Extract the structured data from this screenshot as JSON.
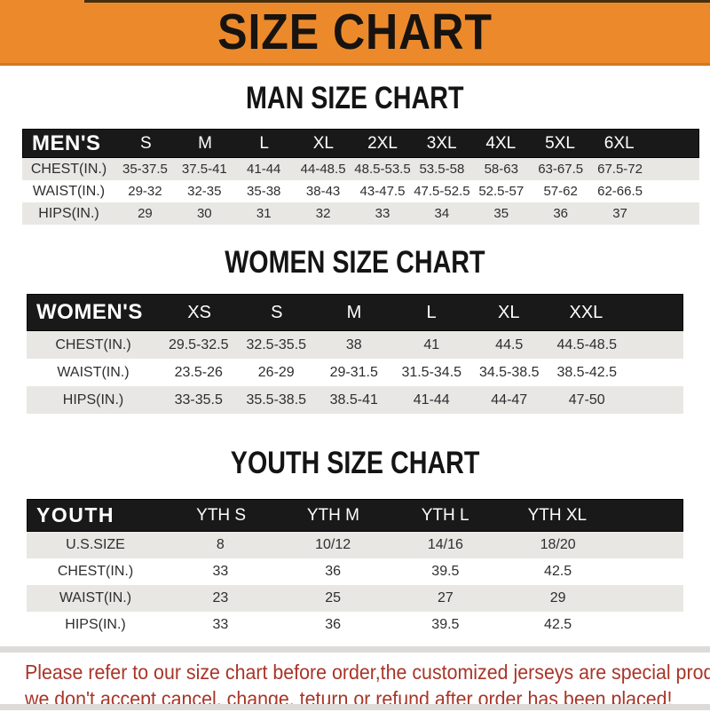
{
  "banner": {
    "title": "SIZE CHART",
    "bg_color": "#EC8A2B"
  },
  "sections": [
    {
      "heading": "MAN SIZE CHART",
      "label": "MEN'S",
      "columns": [
        "S",
        "M",
        "L",
        "XL",
        "2XL",
        "3XL",
        "4XL",
        "5XL",
        "6XL"
      ],
      "rows": [
        {
          "label": "CHEST(IN.)",
          "values": [
            "35-37.5",
            "37.5-41",
            "41-44",
            "44-48.5",
            "48.5-53.5",
            "53.5-58",
            "58-63",
            "63-67.5",
            "67.5-72"
          ]
        },
        {
          "label": "WAIST(IN.)",
          "values": [
            "29-32",
            "32-35",
            "35-38",
            "38-43",
            "43-47.5",
            "47.5-52.5",
            "52.5-57",
            "57-62",
            "62-66.5"
          ]
        },
        {
          "label": "HIPS(IN.)",
          "values": [
            "29",
            "30",
            "31",
            "32",
            "33",
            "34",
            "35",
            "36",
            "37"
          ]
        }
      ]
    },
    {
      "heading": "WOMEN SIZE CHART",
      "label": "WOMEN'S",
      "columns": [
        "XS",
        "S",
        "M",
        "L",
        "XL",
        "XXL"
      ],
      "rows": [
        {
          "label": "CHEST(IN.)",
          "values": [
            "29.5-32.5",
            "32.5-35.5",
            "38",
            "41",
            "44.5",
            "44.5-48.5"
          ]
        },
        {
          "label": "WAIST(IN.)",
          "values": [
            "23.5-26",
            "26-29",
            "29-31.5",
            "31.5-34.5",
            "34.5-38.5",
            "38.5-42.5"
          ]
        },
        {
          "label": "HIPS(IN.)",
          "values": [
            "33-35.5",
            "35.5-38.5",
            "38.5-41",
            "41-44",
            "44-47",
            "47-50"
          ]
        }
      ]
    },
    {
      "heading": "YOUTH SIZE CHART",
      "label": "YOUTH",
      "columns": [
        "YTH S",
        "YTH M",
        "YTH L",
        "YTH XL"
      ],
      "rows": [
        {
          "label": "U.S.SIZE",
          "values": [
            "8",
            "10/12",
            "14/16",
            "18/20"
          ]
        },
        {
          "label": "CHEST(IN.)",
          "values": [
            "33",
            "36",
            "39.5",
            "42.5"
          ]
        },
        {
          "label": "WAIST(IN.)",
          "values": [
            "23",
            "25",
            "27",
            "29"
          ]
        },
        {
          "label": "HIPS(IN.)",
          "values": [
            "33",
            "36",
            "39.5",
            "42.5"
          ]
        }
      ]
    }
  ],
  "footer": {
    "line1": "Please refer to our size chart before order,the customized jerseys are special products,",
    "line2": "we don't accept cancel, change, teturn or refund after order has been placed!",
    "text_color": "#A93528"
  }
}
